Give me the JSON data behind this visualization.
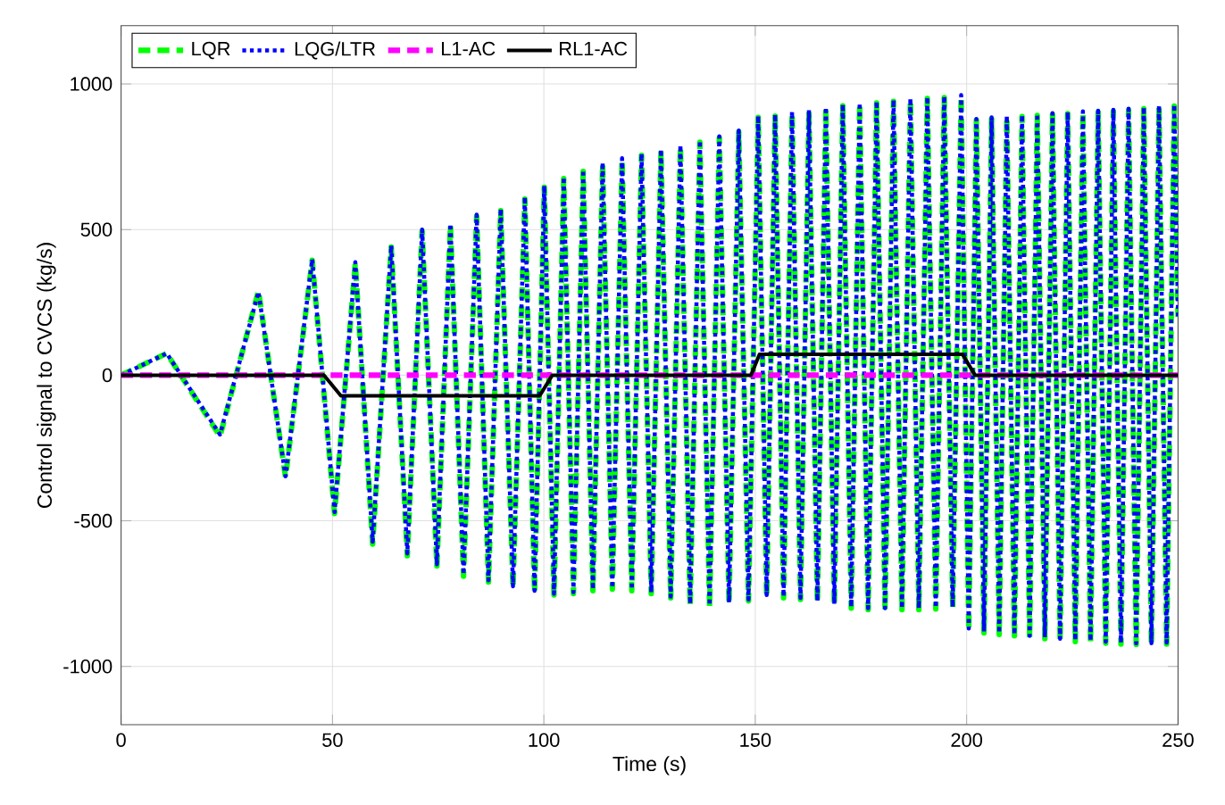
{
  "chart_data": {
    "type": "line",
    "xlabel": "Time (s)",
    "ylabel": "Control signal to CVCS (kg/s)",
    "xlim": [
      0,
      250
    ],
    "ylim": [
      -1200,
      1200
    ],
    "xticks": [
      0,
      50,
      100,
      150,
      200,
      250
    ],
    "yticks": [
      -1000,
      -500,
      0,
      500,
      1000
    ],
    "grid": true,
    "legend": "top left",
    "series": [
      {
        "name": "LQR",
        "color": "#00ff00",
        "line_style": "dashed",
        "x": [
          0,
          10.8,
          23.4,
          32.5,
          38.9,
          45.2,
          50.5,
          55.4,
          59.5,
          63.9,
          67.7,
          71.2,
          74.7,
          77.9,
          81,
          84.1,
          86.9,
          89.8,
          92.7,
          95.5,
          97.8,
          100.1,
          102.4,
          104.7,
          107.0,
          109.3,
          111.6,
          113.9,
          116.2,
          118.5,
          120.8,
          123.1,
          125.4,
          127.7,
          130.0,
          132.3,
          134.6,
          136.9,
          139.2,
          141.5,
          143.8,
          146.1,
          148.4,
          150.7,
          152.7,
          154.7,
          156.7,
          158.7,
          160.7,
          162.7,
          164.7,
          166.7,
          168.7,
          170.7,
          172.7,
          174.7,
          176.7,
          178.7,
          180.7,
          182.7,
          184.7,
          186.7,
          188.7,
          190.7,
          192.7,
          194.7,
          196.7,
          198.7,
          200.5,
          202.3,
          204.1,
          205.9,
          207.7,
          209.5,
          211.3,
          213.1,
          214.9,
          216.7,
          218.5,
          220.3,
          222.1,
          223.9,
          225.7,
          227.5,
          229.3,
          231.1,
          232.9,
          234.7,
          236.5,
          238.3,
          240.1,
          241.9,
          243.7,
          245.5,
          247.3,
          249.1,
          250
        ],
        "values": [
          0,
          75,
          -210,
          290,
          -350,
          395,
          -475,
          385,
          -580,
          440,
          -620,
          495,
          -655,
          515,
          -690,
          545,
          -710,
          565,
          -730,
          605,
          -745,
          645,
          -755,
          675,
          -750,
          700,
          -740,
          725,
          -735,
          740,
          -740,
          755,
          -750,
          770,
          -765,
          785,
          -790,
          800,
          -795,
          815,
          -785,
          835,
          -775,
          885,
          -760,
          890,
          -765,
          900,
          -770,
          905,
          -780,
          915,
          -790,
          925,
          -800,
          930,
          -805,
          935,
          -805,
          940,
          -805,
          945,
          -805,
          950,
          -803,
          953,
          -800,
          957,
          -875,
          875,
          -885,
          880,
          -890,
          885,
          -895,
          888,
          -900,
          892,
          -905,
          895,
          -910,
          898,
          -915,
          901,
          -917,
          903,
          -920,
          906,
          -923,
          910,
          -925,
          915,
          -925,
          920,
          -923,
          924,
          200
        ]
      },
      {
        "name": "LQG/LTR",
        "color": "#0000ff",
        "line_style": "dotted",
        "x": [
          0,
          10.8,
          23.4,
          32.5,
          38.9,
          45.2,
          50.5,
          55.4,
          59.5,
          63.9,
          67.7,
          71.2,
          74.7,
          77.9,
          81,
          84.1,
          86.9,
          89.8,
          92.7,
          95.5,
          97.8,
          100.1,
          102.4,
          104.7,
          107.0,
          109.3,
          111.6,
          113.9,
          116.2,
          118.5,
          120.8,
          123.1,
          125.4,
          127.7,
          130.0,
          132.3,
          134.6,
          136.9,
          139.2,
          141.5,
          143.8,
          146.1,
          148.4,
          150.7,
          152.7,
          154.7,
          156.7,
          158.7,
          160.7,
          162.7,
          164.7,
          166.7,
          168.7,
          170.7,
          172.7,
          174.7,
          176.7,
          178.7,
          180.7,
          182.7,
          184.7,
          186.7,
          188.7,
          190.7,
          192.7,
          194.7,
          196.7,
          198.7,
          200.5,
          202.3,
          204.1,
          205.9,
          207.7,
          209.5,
          211.3,
          213.1,
          214.9,
          216.7,
          218.5,
          220.3,
          222.1,
          223.9,
          225.7,
          227.5,
          229.3,
          231.1,
          232.9,
          234.7,
          236.5,
          238.3,
          240.1,
          241.9,
          243.7,
          245.5,
          247.3,
          249.1,
          250
        ],
        "values": [
          0,
          75,
          -204,
          286,
          -347,
          398,
          -470,
          388,
          -572,
          445,
          -612,
          500,
          -649,
          520,
          -684,
          551,
          -704,
          571,
          -725,
          612,
          -740,
          650,
          -750,
          680,
          -745,
          705,
          -735,
          730,
          -730,
          745,
          -735,
          760,
          -745,
          775,
          -760,
          790,
          -785,
          805,
          -790,
          820,
          -780,
          840,
          -770,
          890,
          -755,
          895,
          -760,
          905,
          -765,
          910,
          -775,
          920,
          -785,
          930,
          -795,
          935,
          -800,
          940,
          -800,
          945,
          -800,
          950,
          -800,
          955,
          -798,
          958,
          -796,
          962,
          -870,
          880,
          -880,
          885,
          -885,
          890,
          -890,
          893,
          -895,
          897,
          -900,
          900,
          -905,
          903,
          -910,
          906,
          -912,
          908,
          -915,
          911,
          -918,
          915,
          -920,
          920,
          -920,
          925,
          -918,
          929,
          200
        ]
      },
      {
        "name": "L1-AC",
        "color": "#ff00ff",
        "line_style": "dashed",
        "x": [
          0,
          250
        ],
        "values": [
          0,
          0
        ]
      },
      {
        "name": "RL1-AC",
        "color": "#000000",
        "line_style": "solid",
        "x": [
          0,
          48,
          52,
          99,
          102,
          149,
          151,
          199,
          202,
          250
        ],
        "values": [
          0,
          0,
          -71,
          -71,
          0,
          0,
          72,
          72,
          0,
          0
        ]
      }
    ]
  }
}
